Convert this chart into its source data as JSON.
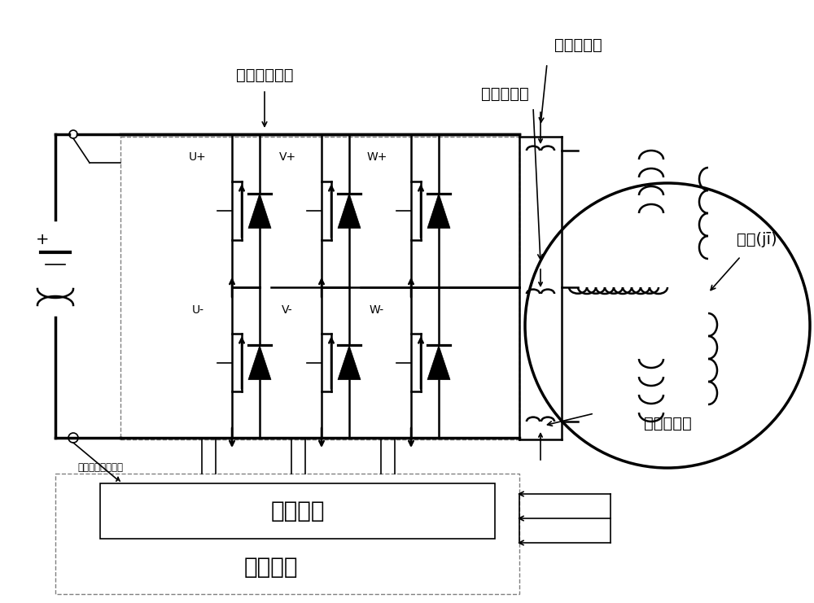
{
  "bg_color": "#ffffff",
  "line_color": "#000000",
  "label_ipm": "智能功率模塊",
  "label_cs1": "電流傳感器",
  "label_cs2": "電流傳感器",
  "label_cs3": "電流傳感器",
  "label_motor": "電機(jī)",
  "label_drive": "驅動信號",
  "label_ctrl": "控制芯片",
  "label_dcbus": "直流母線電壓檢測",
  "label_u_plus": "U+",
  "label_v_plus": "V+",
  "label_w_plus": "W+",
  "label_u_minus": "U-",
  "label_v_minus": "V-",
  "label_w_minus": "W-",
  "label_plus": "+"
}
